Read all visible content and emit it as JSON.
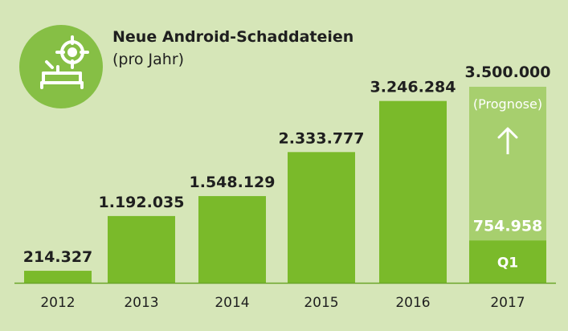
{
  "chart_data": {
    "type": "bar",
    "title": "Neue Android-Schaddateien",
    "subtitle": "(pro Jahr)",
    "categories": [
      "2012",
      "2013",
      "2014",
      "2015",
      "2016",
      "2017"
    ],
    "values": [
      214327,
      1192035,
      1548129,
      2333777,
      3246284,
      754958
    ],
    "value_labels": [
      "214.327",
      "1.192.035",
      "1.548.129",
      "2.333.777",
      "3.246.284",
      "754.958"
    ],
    "forecast": {
      "category": "2017",
      "value": 3500000,
      "value_label": "3.500.000",
      "note": "(Prognose)",
      "partial_label": "Q1"
    },
    "ylim": [
      0,
      3500000
    ],
    "grid": false,
    "colors": {
      "background": "#d6e6b8",
      "bar": "#7aba2a",
      "forecast_bar": "#a7cf6e",
      "baseline": "#6aa52a",
      "text": "#1f1f1f",
      "inverse_text": "#ffffff",
      "icon_circle": "#86bf45"
    },
    "icon": "android-target-icon"
  }
}
